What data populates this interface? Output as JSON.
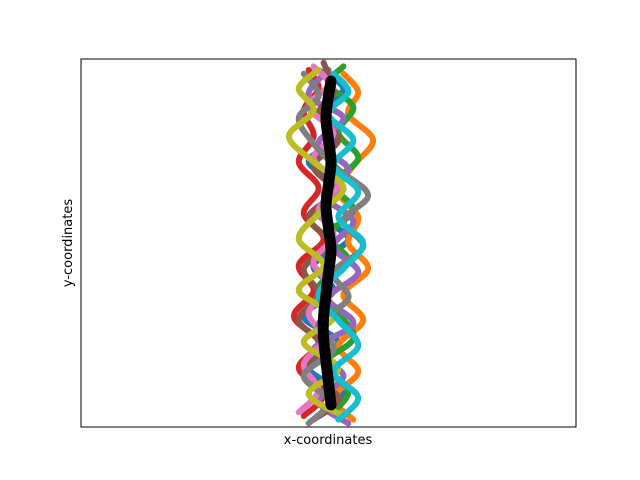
{
  "chart_data": {
    "type": "line",
    "title": "",
    "xlabel": "x-coordinates",
    "ylabel": "y-coordinates",
    "x_ticks_visible": false,
    "y_ticks_visible": false,
    "grid": false,
    "legend": "none",
    "series_colors": [
      "#1f77b4",
      "#ff7f0e",
      "#2ca02c",
      "#d62728",
      "#9467bd",
      "#8c564b",
      "#e377c2",
      "#7f7f7f",
      "#bcbd22",
      "#17becf"
    ],
    "mean_path_color": "#000000",
    "xlim": [
      -5.0,
      5.0
    ],
    "ylim": [
      0,
      100
    ],
    "trajectories": [
      {
        "color": "#1f77b4",
        "points": [
          [
            -0.2,
            3
          ],
          [
            0.3,
            9
          ],
          [
            -0.4,
            16
          ],
          [
            0.2,
            23
          ],
          [
            -0.5,
            30
          ],
          [
            0.1,
            37
          ],
          [
            -0.3,
            44
          ],
          [
            0.4,
            51
          ],
          [
            -0.2,
            58
          ],
          [
            0.3,
            65
          ],
          [
            -0.4,
            72
          ],
          [
            0.2,
            79
          ],
          [
            -0.1,
            86
          ],
          [
            0.3,
            92
          ],
          [
            -0.2,
            97
          ]
        ]
      },
      {
        "color": "#ff7f0e",
        "points": [
          [
            0.5,
            2
          ],
          [
            0.1,
            8
          ],
          [
            0.6,
            15
          ],
          [
            0.2,
            22
          ],
          [
            0.7,
            29
          ],
          [
            0.3,
            36
          ],
          [
            0.8,
            43
          ],
          [
            0.4,
            50
          ],
          [
            0.6,
            57
          ],
          [
            0.2,
            64
          ],
          [
            0.5,
            71
          ],
          [
            0.9,
            78
          ],
          [
            0.4,
            85
          ],
          [
            0.6,
            91
          ],
          [
            0.3,
            96
          ]
        ]
      },
      {
        "color": "#2ca02c",
        "points": [
          [
            0.1,
            4
          ],
          [
            0.4,
            10
          ],
          [
            -0.1,
            17
          ],
          [
            0.5,
            24
          ],
          [
            0.2,
            31
          ],
          [
            -0.2,
            38
          ],
          [
            0.4,
            45
          ],
          [
            0.0,
            52
          ],
          [
            0.5,
            59
          ],
          [
            0.1,
            66
          ],
          [
            0.6,
            73
          ],
          [
            0.2,
            80
          ],
          [
            0.5,
            87
          ],
          [
            0.0,
            93
          ],
          [
            0.3,
            98
          ]
        ]
      },
      {
        "color": "#d62728",
        "points": [
          [
            -0.5,
            3
          ],
          [
            -0.1,
            9
          ],
          [
            -0.6,
            16
          ],
          [
            -0.2,
            23
          ],
          [
            -0.7,
            30
          ],
          [
            -0.3,
            37
          ],
          [
            -0.6,
            44
          ],
          [
            -0.1,
            51
          ],
          [
            -0.5,
            58
          ],
          [
            -0.2,
            65
          ],
          [
            -0.6,
            72
          ],
          [
            -0.3,
            79
          ],
          [
            -0.5,
            86
          ],
          [
            -0.2,
            92
          ],
          [
            -0.4,
            97
          ]
        ]
      },
      {
        "color": "#9467bd",
        "points": [
          [
            0.4,
            1
          ],
          [
            -0.2,
            7
          ],
          [
            0.3,
            14
          ],
          [
            -0.3,
            21
          ],
          [
            0.5,
            28
          ],
          [
            0.0,
            35
          ],
          [
            0.6,
            42
          ],
          [
            0.1,
            49
          ],
          [
            0.5,
            56
          ],
          [
            -0.1,
            63
          ],
          [
            0.4,
            70
          ],
          [
            -0.2,
            77
          ],
          [
            0.3,
            84
          ],
          [
            -0.4,
            90
          ],
          [
            0.0,
            97
          ]
        ]
      },
      {
        "color": "#8c564b",
        "points": [
          [
            -0.3,
            2
          ],
          [
            0.2,
            8
          ],
          [
            -0.5,
            15
          ],
          [
            -0.1,
            22
          ],
          [
            -0.6,
            29
          ],
          [
            -0.2,
            36
          ],
          [
            -0.5,
            43
          ],
          [
            0.0,
            50
          ],
          [
            -0.4,
            57
          ],
          [
            0.1,
            64
          ],
          [
            -0.3,
            71
          ],
          [
            0.2,
            78
          ],
          [
            -0.2,
            85
          ],
          [
            0.1,
            91
          ],
          [
            -0.1,
            99
          ]
        ]
      },
      {
        "color": "#e377c2",
        "points": [
          [
            -0.6,
            4
          ],
          [
            -0.2,
            10
          ],
          [
            -0.5,
            17
          ],
          [
            -0.1,
            24
          ],
          [
            -0.4,
            31
          ],
          [
            0.0,
            38
          ],
          [
            -0.3,
            45
          ],
          [
            0.1,
            52
          ],
          [
            -0.2,
            59
          ],
          [
            0.2,
            66
          ],
          [
            -0.3,
            73
          ],
          [
            0.1,
            80
          ],
          [
            -0.4,
            87
          ],
          [
            0.0,
            93
          ],
          [
            -0.3,
            98
          ]
        ]
      },
      {
        "color": "#7f7f7f",
        "points": [
          [
            -0.4,
            1
          ],
          [
            0.0,
            7
          ],
          [
            -0.5,
            14
          ],
          [
            0.1,
            21
          ],
          [
            -0.2,
            28
          ],
          [
            0.4,
            35
          ],
          [
            0.1,
            42
          ],
          [
            0.7,
            49
          ],
          [
            0.3,
            56
          ],
          [
            0.8,
            63
          ],
          [
            0.2,
            70
          ],
          [
            -0.3,
            77
          ],
          [
            -0.6,
            84
          ],
          [
            -0.2,
            90
          ],
          [
            -0.5,
            96
          ]
        ]
      },
      {
        "color": "#bcbd22",
        "points": [
          [
            0.3,
            3
          ],
          [
            -0.4,
            9
          ],
          [
            0.2,
            16
          ],
          [
            -0.5,
            23
          ],
          [
            0.1,
            30
          ],
          [
            -0.6,
            37
          ],
          [
            -0.1,
            44
          ],
          [
            -0.6,
            51
          ],
          [
            -0.2,
            58
          ],
          [
            0.3,
            65
          ],
          [
            -0.3,
            72
          ],
          [
            -0.8,
            79
          ],
          [
            -0.3,
            86
          ],
          [
            -0.6,
            92
          ],
          [
            -0.2,
            97
          ]
        ]
      },
      {
        "color": "#17becf",
        "points": [
          [
            0.2,
            2
          ],
          [
            0.6,
            8
          ],
          [
            0.1,
            15
          ],
          [
            0.6,
            22
          ],
          [
            0.2,
            29
          ],
          [
            -0.2,
            36
          ],
          [
            0.3,
            43
          ],
          [
            0.7,
            50
          ],
          [
            0.2,
            57
          ],
          [
            0.6,
            64
          ],
          [
            0.1,
            71
          ],
          [
            0.5,
            78
          ],
          [
            0.0,
            85
          ],
          [
            0.4,
            91
          ],
          [
            0.1,
            96
          ]
        ]
      }
    ],
    "mean_path": [
      [
        0.05,
        6
      ],
      [
        0.0,
        12
      ],
      [
        -0.05,
        18
      ],
      [
        -0.1,
        24
      ],
      [
        -0.1,
        30
      ],
      [
        -0.05,
        36
      ],
      [
        0.0,
        42
      ],
      [
        0.05,
        48
      ],
      [
        0.0,
        54
      ],
      [
        -0.05,
        60
      ],
      [
        0.0,
        66
      ],
      [
        0.05,
        72
      ],
      [
        0.0,
        78
      ],
      [
        -0.05,
        84
      ],
      [
        0.0,
        90
      ],
      [
        0.05,
        94
      ]
    ]
  }
}
